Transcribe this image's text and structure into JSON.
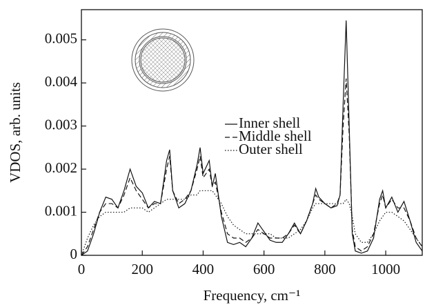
{
  "chart_data": {
    "type": "line",
    "x_label": "Frequency, cm⁻¹",
    "y_label": "VDOS, arb. units",
    "x": [
      0,
      20,
      40,
      60,
      80,
      100,
      120,
      140,
      160,
      180,
      200,
      220,
      240,
      260,
      280,
      290,
      300,
      320,
      340,
      360,
      380,
      390,
      400,
      420,
      430,
      440,
      460,
      480,
      500,
      520,
      540,
      560,
      580,
      600,
      620,
      640,
      660,
      680,
      700,
      720,
      740,
      760,
      770,
      780,
      800,
      820,
      840,
      850,
      860,
      870,
      880,
      890,
      900,
      920,
      940,
      960,
      980,
      990,
      1000,
      1020,
      1040,
      1060,
      1080,
      1100,
      1120
    ],
    "series": [
      {
        "name": "Inner shell",
        "color": "#111111",
        "line_style": "solid",
        "values": [
          0,
          0.0001,
          0.0005,
          0.001,
          0.00135,
          0.0013,
          0.0011,
          0.0015,
          0.002,
          0.0016,
          0.00145,
          0.0011,
          0.00125,
          0.0012,
          0.0022,
          0.00245,
          0.0015,
          0.0011,
          0.0012,
          0.0015,
          0.0021,
          0.0025,
          0.0019,
          0.0022,
          0.0016,
          0.0019,
          0.0009,
          0.0003,
          0.00025,
          0.0003,
          0.0002,
          0.0004,
          0.00075,
          0.00055,
          0.00035,
          0.0003,
          0.0003,
          0.0005,
          0.00075,
          0.0005,
          0.0008,
          0.0012,
          0.00155,
          0.00135,
          0.0012,
          0.0011,
          0.00115,
          0.0014,
          0.0035,
          0.00545,
          0.003,
          0.0005,
          0.0001,
          5e-05,
          0.0001,
          0.0004,
          0.0013,
          0.0015,
          0.0011,
          0.00135,
          0.001,
          0.00125,
          0.0008,
          0.0003,
          0.0001
        ]
      },
      {
        "name": "Middle shell",
        "color": "#111111",
        "line_style": "dashed",
        "values": [
          0,
          0.0002,
          0.0006,
          0.001,
          0.0012,
          0.0012,
          0.0011,
          0.0014,
          0.0018,
          0.0015,
          0.0013,
          0.0011,
          0.0012,
          0.0012,
          0.002,
          0.0023,
          0.0015,
          0.0012,
          0.0013,
          0.0015,
          0.002,
          0.0023,
          0.0018,
          0.002,
          0.0016,
          0.0017,
          0.001,
          0.0005,
          0.0004,
          0.0004,
          0.0003,
          0.0004,
          0.0006,
          0.0005,
          0.0004,
          0.0004,
          0.0004,
          0.0005,
          0.0007,
          0.0005,
          0.0008,
          0.0012,
          0.0014,
          0.0013,
          0.0012,
          0.0011,
          0.0012,
          0.0014,
          0.003,
          0.0041,
          0.0028,
          0.0006,
          0.0002,
          0.0001,
          0.0002,
          0.0005,
          0.0012,
          0.0014,
          0.0011,
          0.0013,
          0.0011,
          0.0011,
          0.0008,
          0.0004,
          0.0002
        ]
      },
      {
        "name": "Outer shell",
        "color": "#111111",
        "line_style": "dotted",
        "values": [
          0,
          0.0004,
          0.0007,
          0.0009,
          0.001,
          0.001,
          0.001,
          0.001,
          0.0011,
          0.0011,
          0.0011,
          0.001,
          0.0011,
          0.0012,
          0.0013,
          0.0013,
          0.0013,
          0.0013,
          0.0013,
          0.0014,
          0.0014,
          0.0015,
          0.0015,
          0.0015,
          0.0015,
          0.0014,
          0.0012,
          0.0009,
          0.0007,
          0.0006,
          0.0005,
          0.0005,
          0.0005,
          0.0005,
          0.0005,
          0.0004,
          0.0004,
          0.0004,
          0.0005,
          0.0006,
          0.0008,
          0.0011,
          0.0012,
          0.0012,
          0.0012,
          0.0012,
          0.0012,
          0.0012,
          0.0012,
          0.0013,
          0.0012,
          0.0009,
          0.0005,
          0.0003,
          0.0003,
          0.0005,
          0.0008,
          0.0009,
          0.001,
          0.001,
          0.0009,
          0.0008,
          0.0006,
          0.0004,
          0.0002
        ]
      }
    ],
    "xlim": [
      0,
      1120
    ],
    "xticks": [
      0,
      200,
      400,
      600,
      800,
      1000
    ],
    "ylim": [
      0,
      0.0057
    ],
    "yticks": [
      0,
      0.001,
      0.002,
      0.003,
      0.004,
      0.005
    ],
    "legend": "center"
  }
}
